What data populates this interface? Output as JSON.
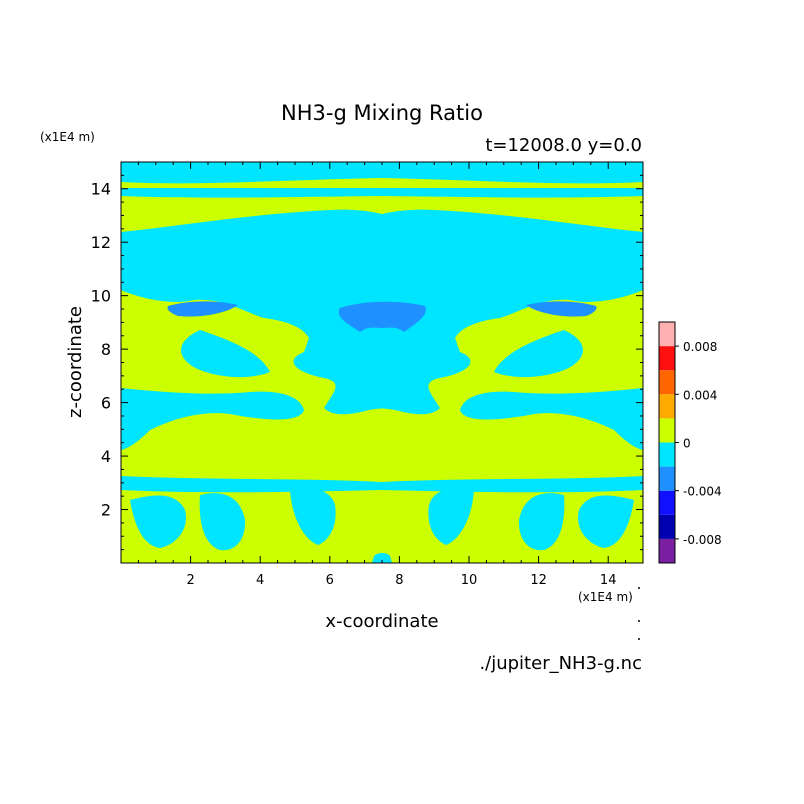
{
  "chart_data": {
    "type": "heatmap",
    "title": "NH3-g Mixing Ratio",
    "subtitle": "t=12008.0 y=0.0",
    "xlabel": "x-coordinate",
    "ylabel": "z-coordinate",
    "x_unit": "(x1E4 m)",
    "y_unit": "(x1E4 m)",
    "source": "./jupiter_NH3-g.nc",
    "xlim": [
      0,
      15
    ],
    "ylim": [
      0,
      15
    ],
    "x_ticks": [
      "2",
      "4",
      "6",
      "8",
      "10",
      "12",
      "14"
    ],
    "y_ticks": [
      "2",
      "4",
      "6",
      "8",
      "10",
      "12",
      "14"
    ],
    "colorbar": {
      "levels": [
        -0.01,
        -0.008,
        -0.006,
        -0.004,
        -0.002,
        0,
        0.002,
        0.004,
        0.006,
        0.008,
        0.01
      ],
      "colors": [
        "#7b1fa2",
        "#0000b0",
        "#1010ff",
        "#1e90ff",
        "#00e5ff",
        "#ccff00",
        "#ffaa00",
        "#ff6600",
        "#ff1010",
        "#ffb0b0"
      ],
      "tick_labels": [
        "0.008",
        "0.004",
        "0",
        "-0.004",
        "-0.008"
      ]
    },
    "field": {
      "background_value_range": "0 to 0.002",
      "cyan_regions": [
        {
          "name": "top band",
          "x": [
            0,
            15
          ],
          "y": [
            13.9,
            15
          ]
        },
        {
          "name": "upper layer",
          "x": [
            0,
            15
          ],
          "y": [
            11,
            12.9
          ]
        },
        {
          "name": "upper-middle zone",
          "x": [
            0,
            15
          ],
          "y": [
            9.3,
            11
          ]
        },
        {
          "name": "central column",
          "x": [
            5,
            10
          ],
          "y": [
            4.7,
            9.3
          ]
        },
        {
          "name": "middle band",
          "x": [
            0,
            15
          ],
          "y": [
            5.5,
            7.2
          ]
        },
        {
          "name": "lower band",
          "x": [
            0,
            15
          ],
          "y": [
            2.6,
            3.3
          ]
        },
        {
          "name": "lower plumes",
          "x": [
            0.5,
            14.5
          ],
          "y": [
            0.5,
            2.6
          ]
        }
      ],
      "blue_regions": [
        {
          "name": "left lens",
          "x": [
            1.3,
            3.3
          ],
          "y": [
            9.3,
            9.8
          ]
        },
        {
          "name": "center lens",
          "x": [
            6.0,
            9.1
          ],
          "y": [
            8.7,
            9.8
          ]
        },
        {
          "name": "right lens",
          "x": [
            11.7,
            13.7
          ],
          "y": [
            9.3,
            9.8
          ]
        }
      ]
    }
  }
}
